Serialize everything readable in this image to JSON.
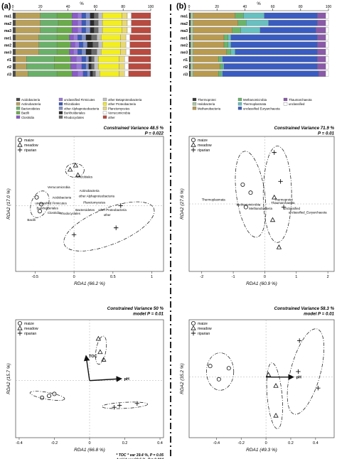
{
  "panel_labels": [
    "(a)",
    "(b)"
  ],
  "colors": {
    "axis": "#222222",
    "frame": "#444444",
    "dashed_divider": "#222222",
    "arrow": "#111111"
  },
  "chart_data": [
    {
      "id": "bar-a",
      "type": "bar",
      "orientation": "horizontal",
      "stacked": true,
      "xlabel": "%",
      "xlim": [
        0,
        100
      ],
      "xticks": [
        0,
        20,
        40,
        60,
        80,
        100
      ],
      "categories": [
        "ma1",
        "ma2",
        "ma3",
        "me1",
        "me2",
        "me3",
        "ri1",
        "ri2",
        "ri3"
      ],
      "series": [
        {
          "name": "Acidobacteria",
          "color": "#4a4a4a",
          "values": [
            2,
            2,
            2,
            2,
            2,
            2,
            2,
            2,
            2
          ]
        },
        {
          "name": "Actinobacteria",
          "color": "#b9a05a",
          "values": [
            18,
            18,
            18,
            17,
            17,
            17,
            8,
            8,
            9
          ]
        },
        {
          "name": "Bacteroidetes",
          "color": "#6ab06a",
          "values": [
            12,
            13,
            12,
            13,
            13,
            13,
            20,
            20,
            21
          ]
        },
        {
          "name": "Bacilli",
          "color": "#6aab4a",
          "values": [
            11,
            10,
            11,
            9,
            10,
            9,
            12,
            12,
            11
          ]
        },
        {
          "name": "Clostridia",
          "color": "#8a5ac8",
          "values": [
            4,
            4,
            4,
            3,
            3,
            3,
            4,
            4,
            4
          ]
        },
        {
          "name": "unclassified Firmicutes",
          "color": "#9a7ad8",
          "values": [
            3,
            3,
            3,
            3,
            3,
            3,
            4,
            4,
            4
          ]
        },
        {
          "name": "Rhizobiales",
          "color": "#3a5ab8",
          "values": [
            3,
            3,
            3,
            3,
            3,
            3,
            3,
            3,
            3
          ]
        },
        {
          "name": "other Alphaproteobacteria",
          "color": "#8090c8",
          "values": [
            3,
            3,
            3,
            3,
            3,
            3,
            2,
            2,
            2
          ]
        },
        {
          "name": "Burkholderiales",
          "color": "#2a2a2a",
          "values": [
            3,
            3,
            3,
            4,
            4,
            4,
            2,
            2,
            2
          ]
        },
        {
          "name": "Rhodocyclales",
          "color": "#6a6a6a",
          "values": [
            3,
            3,
            3,
            4,
            4,
            4,
            2,
            2,
            2
          ]
        },
        {
          "name": "other Betaproteobacteria",
          "color": "#c0c0c0",
          "values": [
            3,
            3,
            3,
            3,
            3,
            3,
            3,
            3,
            3
          ]
        },
        {
          "name": "other Proteobacteria",
          "color": "#f2ee20",
          "values": [
            14,
            14,
            14,
            14,
            13,
            14,
            15,
            15,
            14
          ]
        },
        {
          "name": "Planctomycetes",
          "color": "#e8d870",
          "values": [
            4,
            4,
            4,
            4,
            4,
            4,
            4,
            4,
            4
          ]
        },
        {
          "name": "Verrucomicrobia",
          "color": "#ffffff",
          "values": [
            3,
            3,
            3,
            3,
            3,
            3,
            3,
            3,
            3
          ]
        },
        {
          "name": "other",
          "color": "#b84a40",
          "values": [
            14,
            14,
            14,
            15,
            15,
            15,
            16,
            16,
            16
          ]
        }
      ]
    },
    {
      "id": "bar-b",
      "type": "bar",
      "orientation": "horizontal",
      "stacked": true,
      "xlabel": "%",
      "xlim": [
        0,
        100
      ],
      "xticks": [
        0,
        20,
        40,
        60,
        80,
        100
      ],
      "categories": [
        "ma1",
        "ma2",
        "ma3",
        "me1",
        "me2",
        "me3",
        "ri1",
        "ri2",
        "ri3"
      ],
      "series": [
        {
          "name": "Thermoprotei",
          "color": "#3a3a3a",
          "values": [
            1,
            1,
            1,
            1,
            1,
            1,
            1,
            1,
            1
          ]
        },
        {
          "name": "Halobacteria",
          "color": "#a8c8a0",
          "values": [
            2,
            2,
            2,
            2,
            2,
            2,
            2,
            2,
            2
          ]
        },
        {
          "name": "Methanobacteria",
          "color": "#b89a50",
          "values": [
            30,
            32,
            28,
            22,
            22,
            24,
            18,
            19,
            18
          ]
        },
        {
          "name": "Methanomicrobia",
          "color": "#6ab46a",
          "values": [
            6,
            6,
            6,
            3,
            3,
            3,
            2,
            2,
            2
          ]
        },
        {
          "name": "Thermoplasmata",
          "color": "#68c0c0",
          "values": [
            15,
            16,
            14,
            2,
            2,
            3,
            1,
            1,
            1
          ]
        },
        {
          "name": "unclassified Euryarchaeota",
          "color": "#3a5cc0",
          "values": [
            38,
            35,
            40,
            62,
            62,
            59,
            68,
            67,
            69
          ]
        },
        {
          "name": "Thaumarchaeota",
          "color": "#8a5aa8",
          "values": [
            6,
            6,
            7,
            6,
            6,
            6,
            6,
            6,
            5
          ]
        },
        {
          "name": "unclassified",
          "color": "#ffffff",
          "values": [
            2,
            2,
            2,
            2,
            2,
            2,
            2,
            2,
            2
          ]
        }
      ]
    },
    {
      "id": "rda-a1",
      "type": "scatter",
      "title": "Constrained Variance  48.5 %",
      "subtitle": "P = 0.022",
      "xlabel": "RDA1 (66.2 %)",
      "ylabel": "RDA2 (17.0 %)",
      "xlim": [
        -0.75,
        1.15
      ],
      "ylim": [
        -0.95,
        1.0
      ],
      "xticks": [
        -0.5,
        0.0,
        0.5,
        1.0
      ],
      "legend": [
        "maize",
        "meadow",
        "riparian"
      ],
      "points": [
        {
          "group": "maize",
          "x": -0.48,
          "y": 0.12
        },
        {
          "group": "maize",
          "x": -0.42,
          "y": 0.02
        },
        {
          "group": "maize",
          "x": -0.44,
          "y": -0.08
        },
        {
          "group": "meadow",
          "x": -0.05,
          "y": 0.52
        },
        {
          "group": "meadow",
          "x": 0.02,
          "y": 0.58
        },
        {
          "group": "meadow",
          "x": 0.05,
          "y": 0.44
        },
        {
          "group": "riparian",
          "x": 0.0,
          "y": -0.42
        },
        {
          "group": "riparian",
          "x": 0.54,
          "y": -0.32
        },
        {
          "group": "riparian",
          "x": 0.6,
          "y": 0.0
        }
      ],
      "labels": [
        {
          "text": "Rhizobiales",
          "x": 0.03,
          "y": 0.4
        },
        {
          "text": "Verrucomicrobia",
          "x": -0.34,
          "y": 0.25
        },
        {
          "text": "Actinobacteria",
          "x": 0.07,
          "y": 0.2
        },
        {
          "text": "other Alphaproteobacteria",
          "x": 0.06,
          "y": 0.12
        },
        {
          "text": "Acidobacteria",
          "x": -0.28,
          "y": 0.1
        },
        {
          "text": "unclassified Firmicutes",
          "x": -0.5,
          "y": 0.02
        },
        {
          "text": "Planctomycetes",
          "x": 0.12,
          "y": 0.03
        },
        {
          "text": "Burkholderiales",
          "x": -0.48,
          "y": -0.05
        },
        {
          "text": "Clostridia",
          "x": -0.34,
          "y": -0.12
        },
        {
          "text": "Rhodocyclales",
          "x": -0.18,
          "y": -0.13
        },
        {
          "text": "Bacteroidetes",
          "x": 0.02,
          "y": -0.08
        },
        {
          "text": "other Proteobacteria",
          "x": 0.31,
          "y": -0.08
        },
        {
          "text": "other",
          "x": 0.38,
          "y": -0.15
        },
        {
          "text": "Bacilli",
          "x": -0.6,
          "y": -0.22
        }
      ],
      "ellipses": [
        {
          "cx": -0.44,
          "cy": 0.02,
          "rx": 0.11,
          "ry": 0.2,
          "angle": -20
        },
        {
          "cx": 0.01,
          "cy": 0.51,
          "rx": 0.12,
          "ry": 0.1,
          "angle": 0
        },
        {
          "cx": 0.45,
          "cy": -0.3,
          "rx": 0.62,
          "ry": 0.26,
          "angle": 22
        }
      ]
    },
    {
      "id": "rda-b1",
      "type": "scatter",
      "title": "Constrained Variance  71.9 %",
      "subtitle": "P = 0.01",
      "xlabel": "RDA1 (60.9 %)",
      "ylabel": "RDA2 (27.6 %)",
      "xlim": [
        -2.4,
        2.2
      ],
      "ylim": [
        -2.1,
        2.1
      ],
      "xticks": [
        -2,
        -1,
        0,
        1,
        2
      ],
      "legend": [
        "maize",
        "meadow",
        "riparian"
      ],
      "points": [
        {
          "group": "maize",
          "x": -0.7,
          "y": 0.6
        },
        {
          "group": "maize",
          "x": -0.45,
          "y": 0.35
        },
        {
          "group": "maize",
          "x": -0.6,
          "y": -0.1
        },
        {
          "group": "meadow",
          "x": 0.3,
          "y": 0.2
        },
        {
          "group": "meadow",
          "x": 0.25,
          "y": -0.5
        },
        {
          "group": "meadow",
          "x": 0.45,
          "y": -1.35
        },
        {
          "group": "riparian",
          "x": 0.3,
          "y": 1.6
        },
        {
          "group": "riparian",
          "x": 0.5,
          "y": 0.7
        },
        {
          "group": "riparian",
          "x": 0.6,
          "y": -0.1
        }
      ],
      "labels": [
        {
          "text": "Thermoplasmata",
          "x": -2.0,
          "y": 0.1
        },
        {
          "text": "Thermoprotei",
          "x": 0.3,
          "y": 0.1
        },
        {
          "text": "Thaumarchaeota",
          "x": 0.2,
          "y": 0.0
        },
        {
          "text": "Methanomicrobia",
          "x": -0.9,
          "y": -0.05
        },
        {
          "text": "Methanobacteria",
          "x": -0.5,
          "y": -0.18
        },
        {
          "text": "unclassified",
          "x": 0.6,
          "y": -0.18
        },
        {
          "text": "unclassified_Euryarchaeota",
          "x": 0.75,
          "y": -0.3
        }
      ],
      "ellipses": [
        {
          "cx": -0.45,
          "cy": 0.3,
          "rx": 0.45,
          "ry": 1.35,
          "angle": 8
        },
        {
          "cx": 0.4,
          "cy": 0.3,
          "rx": 0.45,
          "ry": 1.5,
          "angle": 0
        }
      ]
    },
    {
      "id": "rda-a2",
      "type": "scatter",
      "title": "Constrained Variance  50 %",
      "subtitle": "model P = 0.01",
      "xlabel": "RDA1 (66.8 %)",
      "ylabel": "RDA2 (15.7 %)",
      "xlim": [
        -0.42,
        0.42
      ],
      "ylim": [
        -0.3,
        0.32
      ],
      "xticks": [
        -0.4,
        -0.2,
        0.0,
        0.2,
        0.4
      ],
      "legend": [
        "maize",
        "meadow",
        "riparian"
      ],
      "points": [
        {
          "group": "maize",
          "x": -0.27,
          "y": -0.09
        },
        {
          "group": "maize",
          "x": -0.23,
          "y": -0.08
        },
        {
          "group": "maize",
          "x": -0.2,
          "y": -0.07
        },
        {
          "group": "meadow",
          "x": 0.05,
          "y": 0.22
        },
        {
          "group": "meadow",
          "x": 0.06,
          "y": 0.15
        },
        {
          "group": "meadow",
          "x": 0.08,
          "y": 0.11
        },
        {
          "group": "riparian",
          "x": 0.14,
          "y": -0.14
        },
        {
          "group": "riparian",
          "x": 0.17,
          "y": -0.13
        },
        {
          "group": "riparian",
          "x": 0.27,
          "y": -0.12
        }
      ],
      "arrows": [
        {
          "label": "TOC",
          "x": -0.02,
          "y": 0.13
        },
        {
          "label": "pH",
          "x": 0.18,
          "y": 0.01
        }
      ],
      "ellipses": [
        {
          "cx": -0.24,
          "cy": -0.08,
          "rx": 0.1,
          "ry": 0.018,
          "angle": -10
        },
        {
          "cx": 0.065,
          "cy": 0.16,
          "rx": 0.028,
          "ry": 0.075,
          "angle": -10
        },
        {
          "cx": 0.2,
          "cy": -0.13,
          "rx": 0.13,
          "ry": 0.016,
          "angle": 3
        }
      ],
      "footnotes": [
        "* TOC * var 39.4 %, P = 0.05",
        "* pH * var 60.6 %, P = 0.004"
      ]
    },
    {
      "id": "rda-b2",
      "type": "scatter",
      "title": "Constrained Variance  58.3 %",
      "subtitle": "model P = 0.01",
      "xlabel": "RDA1 (49.3 %)",
      "ylabel": "RDA2 (35.2 %)",
      "xlim": [
        -0.62,
        0.55
      ],
      "ylim": [
        -0.55,
        0.52
      ],
      "xticks": [
        -0.4,
        -0.2,
        0.0,
        0.2,
        0.4
      ],
      "legend": [
        "maize",
        "meadow",
        "riparian"
      ],
      "points": [
        {
          "group": "maize",
          "x": -0.45,
          "y": 0.1
        },
        {
          "group": "maize",
          "x": -0.3,
          "y": 0.08
        },
        {
          "group": "maize",
          "x": -0.38,
          "y": -0.02
        },
        {
          "group": "meadow",
          "x": 0.02,
          "y": 0.02
        },
        {
          "group": "meadow",
          "x": 0.08,
          "y": -0.08
        },
        {
          "group": "meadow",
          "x": 0.08,
          "y": -0.35
        },
        {
          "group": "riparian",
          "x": 0.27,
          "y": 0.33
        },
        {
          "group": "riparian",
          "x": 0.26,
          "y": 0.05
        },
        {
          "group": "riparian",
          "x": 0.42,
          "y": -0.1
        }
      ],
      "arrows": [
        {
          "label": "pH",
          "x": 0.22,
          "y": 0.0
        }
      ],
      "ellipses": [
        {
          "cx": -0.37,
          "cy": 0.05,
          "rx": 0.11,
          "ry": 0.17,
          "angle": 0
        },
        {
          "cx": 0.07,
          "cy": -0.17,
          "rx": 0.06,
          "ry": 0.3,
          "angle": 5
        },
        {
          "cx": 0.32,
          "cy": 0.05,
          "rx": 0.12,
          "ry": 0.4,
          "angle": -15
        }
      ]
    }
  ]
}
